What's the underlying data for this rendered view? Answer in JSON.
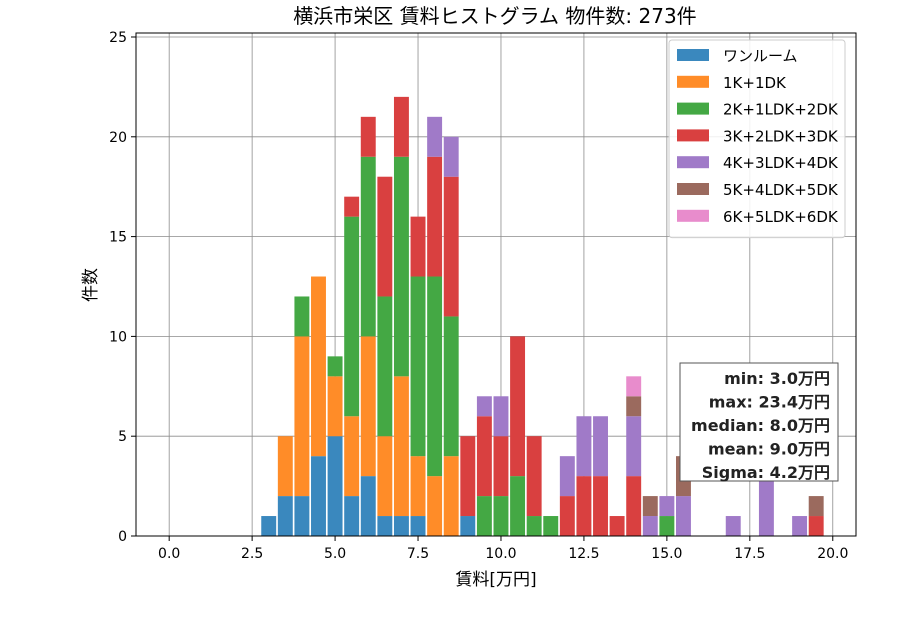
{
  "chart_data": {
    "type": "bar",
    "stacked": true,
    "title": "横浜市栄区 賃料ヒストグラム 物件数: 273件",
    "xlabel": "賃料[万円]",
    "ylabel": "件数",
    "xlim": [
      -1.0,
      20.7
    ],
    "ylim": [
      0,
      25.2
    ],
    "xticks": [
      "0.0",
      "2.5",
      "5.0",
      "7.5",
      "10.0",
      "12.5",
      "15.0",
      "17.5",
      "20.0"
    ],
    "yticks": [
      "0",
      "5",
      "10",
      "15",
      "20",
      "25"
    ],
    "grid": true,
    "legend_position": "top-right",
    "bin_width": 0.5,
    "x": [
      3.0,
      3.5,
      4.0,
      4.5,
      5.0,
      5.5,
      6.0,
      6.5,
      7.0,
      7.5,
      8.0,
      8.5,
      9.0,
      9.5,
      10.0,
      10.5,
      11.0,
      11.5,
      12.0,
      12.5,
      13.0,
      13.5,
      14.0,
      14.5,
      15.0,
      15.5,
      16.0,
      16.5,
      17.0,
      17.5,
      18.0,
      18.5,
      19.0,
      19.5
    ],
    "series": [
      {
        "name": "ワンルーム",
        "color": "#3a88be",
        "values": [
          1,
          2,
          2,
          4,
          5,
          2,
          3,
          1,
          1,
          1,
          0,
          0,
          1,
          0,
          0,
          0,
          0,
          0,
          0,
          0,
          0,
          0,
          0,
          0,
          0,
          0,
          0,
          0,
          0,
          0,
          0,
          0,
          0,
          0
        ]
      },
      {
        "name": "1K+1DK",
        "color": "#ff8c28",
        "values": [
          0,
          3,
          8,
          9,
          3,
          4,
          7,
          4,
          7,
          3,
          3,
          4,
          0,
          0,
          0,
          0,
          0,
          0,
          0,
          0,
          0,
          0,
          0,
          0,
          0,
          0,
          0,
          0,
          0,
          0,
          0,
          0,
          0,
          0
        ]
      },
      {
        "name": "2K+1LDK+2DK",
        "color": "#44a844",
        "values": [
          0,
          0,
          2,
          0,
          1,
          10,
          9,
          7,
          11,
          9,
          10,
          7,
          0,
          2,
          2,
          3,
          1,
          1,
          0,
          0,
          0,
          0,
          0,
          0,
          1,
          0,
          0,
          0,
          0,
          0,
          0,
          0,
          0,
          0
        ]
      },
      {
        "name": "3K+2LDK+3DK",
        "color": "#d94040",
        "values": [
          0,
          0,
          0,
          0,
          0,
          1,
          2,
          6,
          3,
          3,
          6,
          7,
          4,
          4,
          3,
          7,
          4,
          0,
          2,
          3,
          3,
          1,
          3,
          0,
          0,
          0,
          0,
          0,
          0,
          0,
          0,
          0,
          0,
          1
        ]
      },
      {
        "name": "4K+3LDK+4DK",
        "color": "#a07ac8",
        "values": [
          0,
          0,
          0,
          0,
          0,
          0,
          0,
          0,
          0,
          0,
          2,
          2,
          0,
          1,
          2,
          0,
          0,
          0,
          2,
          3,
          3,
          0,
          3,
          1,
          1,
          2,
          0,
          0,
          1,
          0,
          3,
          0,
          1,
          0
        ]
      },
      {
        "name": "5K+4LDK+5DK",
        "color": "#9b6a5e",
        "values": [
          0,
          0,
          0,
          0,
          0,
          0,
          0,
          0,
          0,
          0,
          0,
          0,
          0,
          0,
          0,
          0,
          0,
          0,
          0,
          0,
          0,
          0,
          1,
          1,
          0,
          2,
          0,
          0,
          0,
          0,
          0,
          0,
          0,
          1
        ]
      },
      {
        "name": "6K+5LDK+6DK",
        "color": "#e88ccc",
        "values": [
          0,
          0,
          0,
          0,
          0,
          0,
          0,
          0,
          0,
          0,
          0,
          0,
          0,
          0,
          0,
          0,
          0,
          0,
          0,
          0,
          0,
          0,
          1,
          0,
          0,
          0,
          0,
          0,
          0,
          0,
          0,
          0,
          0,
          0
        ]
      }
    ],
    "stats": [
      "min: 3.0万円",
      "max: 23.4万円",
      "median: 8.0万円",
      "mean: 9.0万円",
      "Sigma: 4.2万円"
    ]
  }
}
